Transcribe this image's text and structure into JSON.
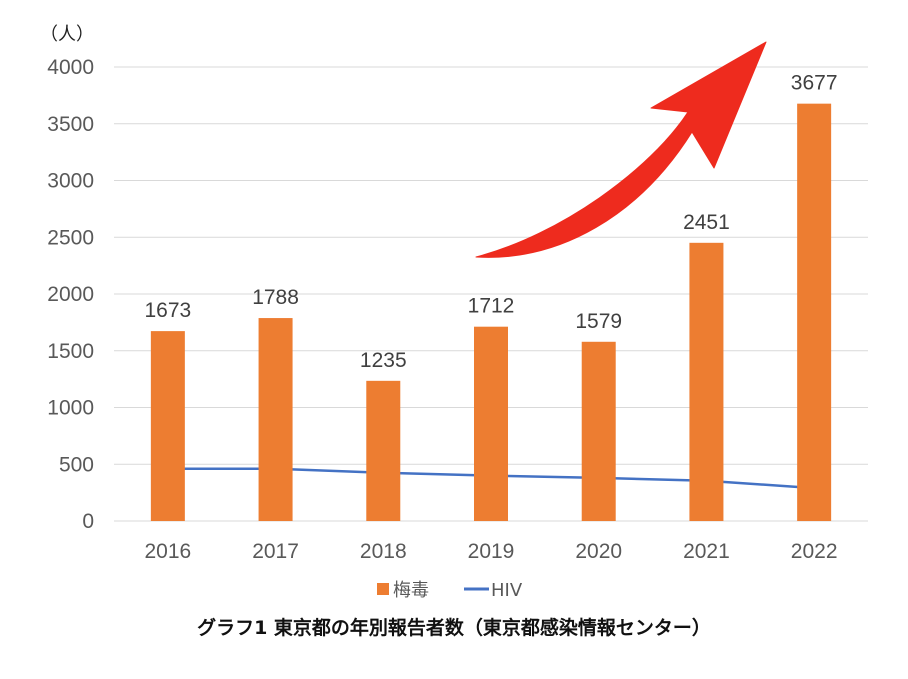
{
  "chart_data": {
    "type": "bar",
    "title": "グラフ1 東京都の年別報告者数（東京都感染情報センター）",
    "unit_label": "（人）",
    "categories": [
      "2016",
      "2017",
      "2018",
      "2019",
      "2020",
      "2021",
      "2022"
    ],
    "ylim": [
      0,
      4000
    ],
    "yticks": [
      0,
      500,
      1000,
      1500,
      2000,
      2500,
      3000,
      3500,
      4000
    ],
    "grid": true,
    "legend_position": "bottom",
    "series": [
      {
        "name": "梅毒",
        "kind": "bar",
        "color": "#ED7D31",
        "values": [
          1673,
          1788,
          1235,
          1712,
          1579,
          2451,
          3677
        ],
        "show_labels": true
      },
      {
        "name": "HIV",
        "kind": "line",
        "color": "#4472C4",
        "values": [
          460,
          460,
          425,
          400,
          380,
          355,
          290
        ],
        "show_labels": false
      }
    ],
    "annotation": {
      "type": "trend-arrow",
      "color": "#EE2B1E"
    }
  }
}
